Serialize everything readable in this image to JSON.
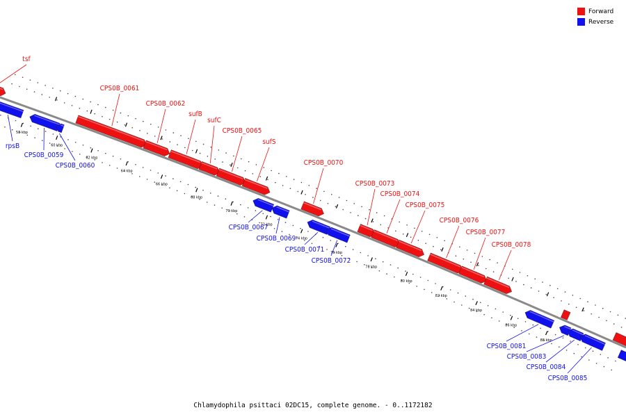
{
  "colors": {
    "forward": "#ee1111",
    "reverse": "#1111ee",
    "backbone": "#888888"
  },
  "legend": [
    {
      "label": "Forward",
      "color": "#ee1111"
    },
    {
      "label": "Reverse",
      "color": "#1111ee"
    }
  ],
  "caption": "Chlamydophila psittaci 02DC15, complete genome. - 0..1172182",
  "ticks": [
    "58 kbp",
    "60 kbp",
    "62 kbp",
    "64 kbp",
    "66 kbp",
    "68 kbp",
    "70 kbp",
    "72 kbp",
    "74 kbp",
    "76 kbp",
    "78 kbp",
    "80 kbp",
    "82 kbp",
    "84 kbp",
    "86 kbp",
    "88 kbp"
  ],
  "genes": {
    "forward": [
      "tsf",
      "CPS0B_0061",
      "CPS0B_0062",
      "sufB",
      "sufC",
      "CPS0B_0065",
      "sufS",
      "CPS0B_0070",
      "CPS0B_0073",
      "CPS0B_0074",
      "CPS0B_0075",
      "CPS0B_0076",
      "CPS0B_0077",
      "CPS0B_0078"
    ],
    "reverse": [
      "rpsB",
      "CPS0B_0059",
      "CPS0B_0060",
      "CPS0B_0067",
      "CPS0B_0069",
      "CPS0B_0071",
      "CPS0B_0072",
      "CPS0B_0081",
      "CPS0B_0083",
      "CPS0B_0084",
      "CPS0B_0085"
    ]
  }
}
